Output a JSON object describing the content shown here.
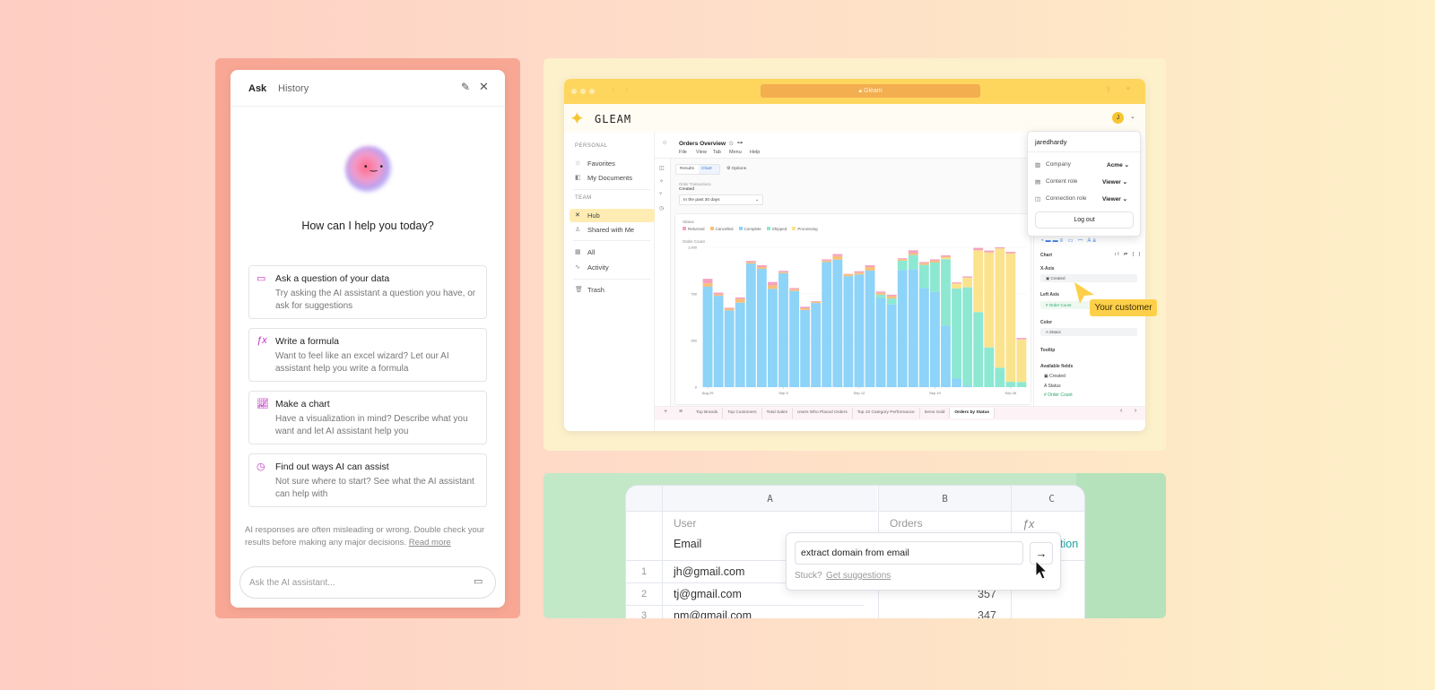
{
  "assistant": {
    "tabs": [
      "Ask",
      "History"
    ],
    "greeting": "How can I help you today?",
    "suggestions": [
      {
        "icon": "message-square-icon",
        "title": "Ask a question of your data",
        "description": "Try asking the AI assistant a question you have, or ask for suggestions"
      },
      {
        "icon": "function-icon",
        "title": "Write a formula",
        "description": "Want to feel like an excel wizard? Let our AI assistant help you write a formula"
      },
      {
        "icon": "chart-icon",
        "title": "Make a chart",
        "description": "Have a visualization in mind? Describe what you want and let AI assistant help you"
      },
      {
        "icon": "lightbulb-icon",
        "title": "Find out ways AI can assist",
        "description": "Not sure where to start? See what the AI assistant can help with"
      }
    ],
    "disclaimer": "AI responses are often misleading or wrong. Double check your results before making any major decisions.",
    "read_more": "Read more",
    "input_placeholder": "Ask the AI assistant..."
  },
  "browser": {
    "url": "Gleam",
    "brand": "GLEAM",
    "avatar": "J",
    "sidebar": {
      "personal_heading": "PERSONAL",
      "personal": [
        "Favorites",
        "My Documents"
      ],
      "team_heading": "TEAM",
      "team": [
        "Hub",
        "Shared with Me"
      ],
      "other": [
        "All",
        "Activity"
      ],
      "trash": "Trash"
    },
    "doc": {
      "title": "Orders Overview",
      "menu": [
        "File",
        "View",
        "Tab",
        "Menu",
        "Help"
      ],
      "view_tabs": [
        "Results",
        "Chart",
        "Options"
      ],
      "filter_source": "Order Transactions",
      "filter_label": "Created",
      "filter_value": "In the past 30 days"
    },
    "sheet_tabs": [
      "Top Brands",
      "Top Customers",
      "Total Sales",
      "Users Who Placed Orders",
      "Top 10 Category Performance",
      "Items Sold",
      "Orders by Status"
    ],
    "active_sheet_tab": "Orders by Status",
    "user_menu": {
      "username": "jaredhardy",
      "rows": [
        {
          "label": "Company",
          "value": "Acme"
        },
        {
          "label": "Content role",
          "value": "Viewer"
        },
        {
          "label": "Connection role",
          "value": "Viewer"
        }
      ],
      "logout": "Log out"
    },
    "config": {
      "chart": "Chart",
      "x_axis": "X-Axis",
      "x_field": "Created",
      "left_axis": "Left Axis",
      "left_field": "Order Count",
      "color": "Color",
      "color_field": "Status",
      "tooltip": "Tooltip",
      "available": "Available fields",
      "fields": [
        "Created",
        "Status",
        "Order Count"
      ]
    },
    "callout": "Your customer"
  },
  "chart_data": {
    "type": "bar",
    "stacked": true,
    "legend_title": "Status",
    "ylabel": "Order Count",
    "ylim": [
      0,
      1000
    ],
    "y_tick_labels": [
      "0",
      "250",
      "750",
      "1,000"
    ],
    "x_tick_labels": [
      "Aug 29",
      "Sep 5",
      "Sep 12",
      "Sep 19",
      "Sep 26"
    ],
    "x_tick_index": [
      0,
      7,
      14,
      21,
      28
    ],
    "series": [
      {
        "name": "Complete",
        "color": "#8ed3f8",
        "values": [
          718,
          653,
          549,
          604,
          884,
          846,
          703,
          815,
          688,
          552,
          602,
          895,
          912,
          794,
          806,
          834,
          638,
          592,
          838,
          844,
          709,
          680,
          440,
          61,
          11,
          0,
          0,
          0,
          0,
          0
        ]
      },
      {
        "name": "Shipped",
        "color": "#8de8d2",
        "values": [
          0,
          0,
          0,
          0,
          0,
          0,
          0,
          0,
          0,
          0,
          0,
          0,
          0,
          0,
          0,
          0,
          23,
          42,
          67,
          101,
          165,
          211,
          476,
          644,
          703,
          537,
          284,
          139,
          38,
          36
        ]
      },
      {
        "name": "Processing",
        "color": "#fbe38e",
        "values": [
          0,
          0,
          0,
          0,
          0,
          0,
          0,
          0,
          0,
          0,
          0,
          0,
          0,
          0,
          0,
          0,
          0,
          0,
          0,
          0,
          0,
          0,
          10,
          36,
          69,
          442,
          680,
          853,
          920,
          306
        ]
      },
      {
        "name": "Cancelled",
        "color": "#f7c07a",
        "values": [
          25,
          10,
          12,
          28,
          10,
          13,
          25,
          8,
          12,
          12,
          8,
          10,
          25,
          15,
          13,
          25,
          13,
          17,
          10,
          13,
          13,
          13,
          7,
          0,
          0,
          0,
          0,
          0,
          0,
          0
        ]
      },
      {
        "name": "Returned",
        "color": "#f4a3c0",
        "values": [
          32,
          13,
          7,
          10,
          9,
          13,
          24,
          9,
          9,
          11,
          5,
          9,
          15,
          2,
          10,
          13,
          10,
          10,
          7,
          21,
          8,
          10,
          10,
          8,
          9,
          17,
          13,
          8,
          10,
          10
        ]
      }
    ],
    "legend_order": [
      "Returned",
      "Cancelled",
      "Complete",
      "Shipped",
      "Processing"
    ]
  },
  "spreadsheet": {
    "columns": [
      "A",
      "B",
      "C"
    ],
    "col_a_sub": "User",
    "col_a_name": "Email",
    "col_b_sub": "Orders",
    "col_c_icon": "ƒx",
    "col_c_name": "tion",
    "rows": [
      {
        "n": "1",
        "email": "jh@gmail.com",
        "orders": ""
      },
      {
        "n": "2",
        "email": "tj@gmail.com",
        "orders": "357"
      },
      {
        "n": "3",
        "email": "nm@gmail.com",
        "orders": "347"
      }
    ],
    "prompt_value": "extract domain from email",
    "stuck": "Stuck?",
    "suggestions_link": "Get suggestions"
  }
}
